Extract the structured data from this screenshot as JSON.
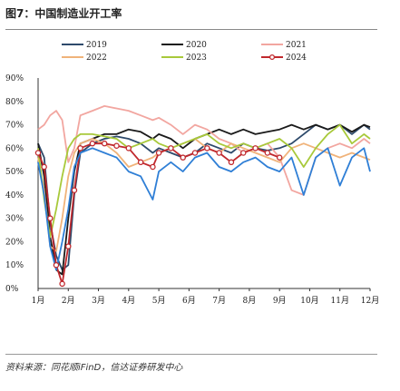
{
  "figure": {
    "title": "图7：中国制造业开工率",
    "source": "资料来源：同花顺iFinD，信达证券研发中心"
  },
  "chart_data": {
    "type": "line",
    "title": "",
    "xlabel": "",
    "ylabel": "",
    "ylim": [
      0,
      90
    ],
    "yticks": [
      "0%",
      "10%",
      "20%",
      "30%",
      "40%",
      "50%",
      "60%",
      "70%",
      "80%",
      "90%"
    ],
    "x_tick_labels": [
      "1月",
      "2月",
      "3月",
      "4月",
      "5月",
      "6月",
      "7月",
      "8月",
      "9月",
      "10月",
      "11月",
      "12月"
    ],
    "x_range": [
      1,
      12
    ],
    "grid": false,
    "legend_placement": "top",
    "series": [
      {
        "name": "2019",
        "color": "#2e4a6b",
        "marker": false,
        "points": [
          [
            1.0,
            62
          ],
          [
            1.2,
            56
          ],
          [
            1.4,
            28
          ],
          [
            1.6,
            14
          ],
          [
            1.8,
            8
          ],
          [
            2.0,
            10
          ],
          [
            2.2,
            40
          ],
          [
            2.4,
            58
          ],
          [
            2.8,
            62
          ],
          [
            3.2,
            64
          ],
          [
            3.6,
            65
          ],
          [
            4.0,
            64
          ],
          [
            4.4,
            62
          ],
          [
            4.8,
            58
          ],
          [
            5.0,
            60
          ],
          [
            5.4,
            58
          ],
          [
            5.8,
            56
          ],
          [
            6.2,
            58
          ],
          [
            6.6,
            62
          ],
          [
            7.0,
            60
          ],
          [
            7.4,
            58
          ],
          [
            7.8,
            62
          ],
          [
            8.2,
            60
          ],
          [
            8.6,
            59
          ],
          [
            9.0,
            60
          ],
          [
            9.4,
            62
          ],
          [
            9.8,
            66
          ],
          [
            10.2,
            70
          ],
          [
            10.6,
            68
          ],
          [
            11.0,
            70
          ],
          [
            11.4,
            66
          ],
          [
            11.8,
            70
          ],
          [
            12.0,
            68
          ]
        ]
      },
      {
        "name": "2020",
        "color": "#1a1a1a",
        "marker": false,
        "points": [
          [
            1.0,
            62
          ],
          [
            1.2,
            48
          ],
          [
            1.4,
            22
          ],
          [
            1.6,
            8
          ],
          [
            1.8,
            6
          ],
          [
            2.0,
            30
          ],
          [
            2.2,
            50
          ],
          [
            2.4,
            62
          ],
          [
            2.8,
            64
          ],
          [
            3.2,
            66
          ],
          [
            3.6,
            66
          ],
          [
            4.0,
            68
          ],
          [
            4.4,
            67
          ],
          [
            4.8,
            64
          ],
          [
            5.0,
            66
          ],
          [
            5.4,
            64
          ],
          [
            5.8,
            60
          ],
          [
            6.2,
            64
          ],
          [
            6.6,
            66
          ],
          [
            7.0,
            68
          ],
          [
            7.4,
            66
          ],
          [
            7.8,
            68
          ],
          [
            8.2,
            66
          ],
          [
            8.6,
            67
          ],
          [
            9.0,
            68
          ],
          [
            9.4,
            70
          ],
          [
            9.8,
            68
          ],
          [
            10.2,
            70
          ],
          [
            10.6,
            68
          ],
          [
            11.0,
            70
          ],
          [
            11.4,
            67
          ],
          [
            11.8,
            70
          ],
          [
            12.0,
            69
          ]
        ]
      },
      {
        "name": "2021",
        "color": "#f2a6a0",
        "marker": false,
        "points": [
          [
            1.0,
            68
          ],
          [
            1.2,
            70
          ],
          [
            1.4,
            74
          ],
          [
            1.6,
            76
          ],
          [
            1.8,
            72
          ],
          [
            2.0,
            54
          ],
          [
            2.2,
            60
          ],
          [
            2.4,
            74
          ],
          [
            2.8,
            76
          ],
          [
            3.2,
            78
          ],
          [
            3.6,
            77
          ],
          [
            4.0,
            76
          ],
          [
            4.4,
            74
          ],
          [
            4.8,
            72
          ],
          [
            5.0,
            73
          ],
          [
            5.4,
            70
          ],
          [
            5.8,
            66
          ],
          [
            6.2,
            70
          ],
          [
            6.6,
            68
          ],
          [
            7.0,
            64
          ],
          [
            7.4,
            62
          ],
          [
            7.8,
            58
          ],
          [
            8.2,
            60
          ],
          [
            8.6,
            62
          ],
          [
            9.0,
            56
          ],
          [
            9.4,
            42
          ],
          [
            9.8,
            40
          ],
          [
            10.2,
            56
          ],
          [
            10.6,
            60
          ],
          [
            11.0,
            62
          ],
          [
            11.4,
            60
          ],
          [
            11.8,
            64
          ],
          [
            12.0,
            62
          ]
        ]
      },
      {
        "name": "2022",
        "color": "#f0b37a",
        "marker": false,
        "points": [
          [
            1.0,
            56
          ],
          [
            1.2,
            42
          ],
          [
            1.4,
            18
          ],
          [
            1.6,
            16
          ],
          [
            1.8,
            30
          ],
          [
            2.0,
            48
          ],
          [
            2.2,
            58
          ],
          [
            2.4,
            62
          ],
          [
            2.8,
            64
          ],
          [
            3.2,
            62
          ],
          [
            3.6,
            58
          ],
          [
            4.0,
            52
          ],
          [
            4.4,
            54
          ],
          [
            4.8,
            56
          ],
          [
            5.0,
            58
          ],
          [
            5.4,
            60
          ],
          [
            5.8,
            62
          ],
          [
            6.2,
            64
          ],
          [
            6.6,
            60
          ],
          [
            7.0,
            58
          ],
          [
            7.4,
            62
          ],
          [
            7.8,
            60
          ],
          [
            8.2,
            58
          ],
          [
            8.6,
            56
          ],
          [
            9.0,
            54
          ],
          [
            9.4,
            60
          ],
          [
            9.8,
            62
          ],
          [
            10.2,
            60
          ],
          [
            10.6,
            58
          ],
          [
            11.0,
            56
          ],
          [
            11.4,
            58
          ],
          [
            11.8,
            56
          ],
          [
            12.0,
            55
          ]
        ]
      },
      {
        "name": "2023",
        "color": "#a8c93a",
        "marker": false,
        "points": [
          [
            1.0,
            60
          ],
          [
            1.2,
            38
          ],
          [
            1.4,
            22
          ],
          [
            1.6,
            34
          ],
          [
            1.8,
            48
          ],
          [
            2.0,
            60
          ],
          [
            2.2,
            64
          ],
          [
            2.4,
            66
          ],
          [
            2.8,
            66
          ],
          [
            3.2,
            65
          ],
          [
            3.6,
            64
          ],
          [
            4.0,
            60
          ],
          [
            4.4,
            62
          ],
          [
            4.8,
            64
          ],
          [
            5.0,
            62
          ],
          [
            5.4,
            60
          ],
          [
            5.8,
            62
          ],
          [
            6.2,
            64
          ],
          [
            6.6,
            66
          ],
          [
            7.0,
            62
          ],
          [
            7.4,
            60
          ],
          [
            7.8,
            62
          ],
          [
            8.2,
            60
          ],
          [
            8.6,
            62
          ],
          [
            9.0,
            64
          ],
          [
            9.4,
            60
          ],
          [
            9.8,
            52
          ],
          [
            10.2,
            60
          ],
          [
            10.6,
            66
          ],
          [
            11.0,
            70
          ],
          [
            11.4,
            62
          ],
          [
            11.8,
            66
          ],
          [
            12.0,
            64
          ]
        ]
      },
      {
        "name": "2024",
        "color": "#c0282d",
        "marker": true,
        "points": [
          [
            1.0,
            58
          ],
          [
            1.2,
            52
          ],
          [
            1.4,
            30
          ],
          [
            1.6,
            10
          ],
          [
            1.8,
            2
          ],
          [
            2.0,
            18
          ],
          [
            2.2,
            42
          ],
          [
            2.4,
            60
          ],
          [
            2.8,
            62
          ],
          [
            3.2,
            62
          ],
          [
            3.6,
            61
          ],
          [
            4.0,
            60
          ],
          [
            4.4,
            54
          ],
          [
            4.8,
            52
          ],
          [
            5.0,
            58
          ],
          [
            5.4,
            60
          ],
          [
            5.8,
            56
          ],
          [
            6.2,
            58
          ],
          [
            6.6,
            60
          ],
          [
            7.0,
            58
          ],
          [
            7.4,
            54
          ],
          [
            7.8,
            58
          ],
          [
            8.2,
            60
          ],
          [
            8.6,
            58
          ],
          [
            9.0,
            56
          ]
        ]
      },
      {
        "name": "",
        "color": "#2f7fd6",
        "marker": false,
        "points": [
          [
            1.0,
            54
          ],
          [
            1.2,
            40
          ],
          [
            1.4,
            18
          ],
          [
            1.6,
            8
          ],
          [
            1.8,
            20
          ],
          [
            2.0,
            34
          ],
          [
            2.2,
            52
          ],
          [
            2.4,
            58
          ],
          [
            2.8,
            60
          ],
          [
            3.2,
            58
          ],
          [
            3.6,
            56
          ],
          [
            4.0,
            50
          ],
          [
            4.4,
            48
          ],
          [
            4.8,
            38
          ],
          [
            5.0,
            50
          ],
          [
            5.4,
            54
          ],
          [
            5.8,
            50
          ],
          [
            6.2,
            56
          ],
          [
            6.6,
            58
          ],
          [
            7.0,
            52
          ],
          [
            7.4,
            50
          ],
          [
            7.8,
            54
          ],
          [
            8.2,
            56
          ],
          [
            8.6,
            52
          ],
          [
            9.0,
            50
          ],
          [
            9.4,
            56
          ],
          [
            9.8,
            40
          ],
          [
            10.2,
            56
          ],
          [
            10.6,
            60
          ],
          [
            11.0,
            44
          ],
          [
            11.4,
            56
          ],
          [
            11.8,
            60
          ],
          [
            12.0,
            50
          ]
        ]
      }
    ]
  }
}
